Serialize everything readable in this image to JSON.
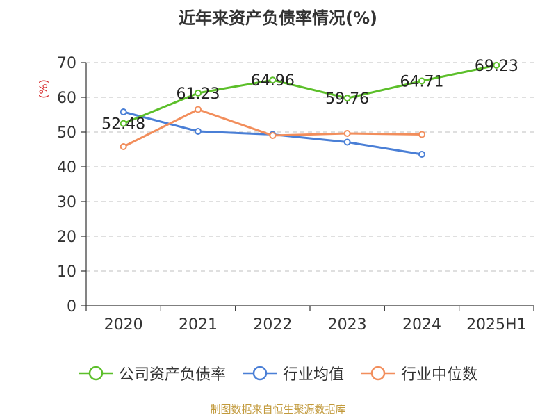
{
  "chart_data": {
    "type": "line",
    "title": "近年来资产负债率情况(%)",
    "ylabel": "(%)",
    "xlabel": "",
    "categories": [
      "2020",
      "2021",
      "2022",
      "2023",
      "2024",
      "2025H1"
    ],
    "ylim": [
      0,
      70
    ],
    "yticks": [
      0,
      10,
      20,
      30,
      40,
      50,
      60,
      70
    ],
    "grid": "horizontal-dashed",
    "legend_position": "bottom",
    "series": [
      {
        "name": "公司资产负债率",
        "color": "#5cbf2a",
        "values": [
          52.48,
          61.23,
          64.96,
          59.76,
          64.71,
          69.23
        ],
        "labels": [
          "52.48",
          "61.23",
          "64.96",
          "59.76",
          "64.71",
          "69.23"
        ]
      },
      {
        "name": "行业均值",
        "color": "#4a7fd6",
        "values": [
          55.8,
          50.2,
          49.3,
          47.1,
          43.6,
          null
        ]
      },
      {
        "name": "行业中位数",
        "color": "#f28e5c",
        "values": [
          45.8,
          56.5,
          49.0,
          49.6,
          49.3,
          null
        ]
      }
    ]
  },
  "footer": {
    "source": "制图数据来自恒生聚源数据库"
  }
}
